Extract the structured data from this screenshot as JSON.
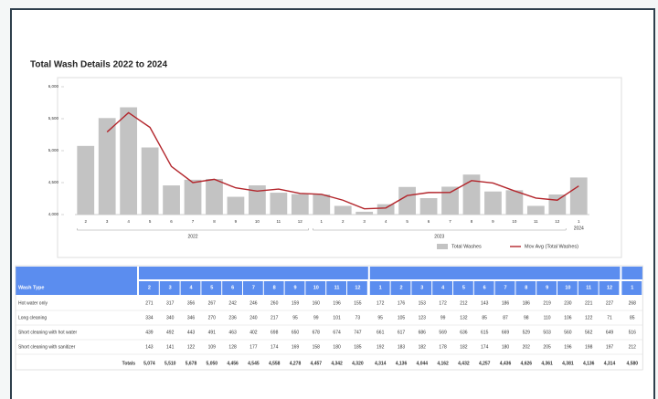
{
  "chart_data": {
    "type": "bar",
    "title": "Total Wash Details 2022 to 2024",
    "category_groups": [
      {
        "label": "2022",
        "categories": [
          "2",
          "3",
          "4",
          "5",
          "6",
          "7",
          "8",
          "9",
          "10",
          "11",
          "12"
        ]
      },
      {
        "label": "2023",
        "categories": [
          "1",
          "2",
          "3",
          "4",
          "5",
          "6",
          "7",
          "8",
          "9",
          "10",
          "11",
          "12"
        ]
      },
      {
        "label": "2024",
        "categories": [
          "1"
        ]
      }
    ],
    "series": [
      {
        "name": "Total Washes",
        "type": "bar",
        "color": "#c3c3c3",
        "values": [
          5074,
          5510,
          5678,
          5050,
          4456,
          4545,
          4558,
          4278,
          4457,
          4342,
          4320,
          4314,
          4136,
          4044,
          4162,
          4432,
          4257,
          4436,
          4626,
          4361,
          4381,
          4136,
          4314,
          4580
        ]
      },
      {
        "name": "Mov Avg (Total Washes)",
        "type": "line",
        "color": "#b3262c",
        "values": [
          null,
          5292,
          5594,
          5364,
          4753,
          4500.5,
          4551.5,
          4418,
          4367.5,
          4399.5,
          4331,
          4317,
          4225,
          4090,
          4103,
          4297,
          4344.5,
          4346.5,
          4531,
          4493.5,
          4371,
          4258.5,
          4225,
          4447
        ]
      }
    ],
    "ylim": [
      4000,
      6000
    ],
    "yticks": [
      {
        "value": 4000,
        "label": "4,000"
      },
      {
        "value": 4500,
        "label": "4,500"
      },
      {
        "value": 5000,
        "label": "5,000"
      },
      {
        "value": 5500,
        "label": "5,500"
      },
      {
        "value": 6000,
        "label": "6,000"
      }
    ],
    "grid": false,
    "legend": "bottom-right"
  },
  "table": {
    "header_label": "Wash Type",
    "columns": [
      "2",
      "3",
      "4",
      "5",
      "6",
      "7",
      "8",
      "9",
      "10",
      "11",
      "12",
      "1",
      "2",
      "3",
      "4",
      "5",
      "6",
      "7",
      "8",
      "9",
      "10",
      "11",
      "12",
      "1"
    ],
    "rows": [
      {
        "label": "Hot water only",
        "values": [
          271,
          317,
          356,
          267,
          242,
          246,
          260,
          159,
          160,
          196,
          155,
          172,
          176,
          153,
          172,
          212,
          143,
          186,
          186,
          219,
          230,
          221,
          227,
          268
        ]
      },
      {
        "label": "Long cleaning",
        "values": [
          334,
          340,
          346,
          270,
          236,
          240,
          217,
          95,
          99,
          101,
          73,
          95,
          105,
          123,
          99,
          132,
          85,
          87,
          98,
          110,
          106,
          122,
          71,
          85
        ]
      },
      {
        "label": "Short cleaning with hot water",
        "values": [
          439,
          492,
          443,
          491,
          463,
          402,
          698,
          650,
          678,
          674,
          747,
          661,
          617,
          686,
          569,
          636,
          615,
          669,
          529,
          503,
          560,
          562,
          649,
          516
        ]
      },
      {
        "label": "Short cleaning with sanitizer",
        "values": [
          143,
          141,
          122,
          109,
          128,
          177,
          174,
          169,
          158,
          180,
          185,
          192,
          183,
          182,
          178,
          182,
          174,
          180,
          202,
          205,
          196,
          198,
          197,
          212
        ]
      }
    ],
    "totals": {
      "label": "Totals",
      "values": [
        "5,074",
        "5,510",
        "5,678",
        "5,050",
        "4,456",
        "4,545",
        "4,558",
        "4,278",
        "4,457",
        "4,342",
        "4,320",
        "4,314",
        "4,136",
        "4,044",
        "4,162",
        "4,432",
        "4,257",
        "4,436",
        "4,626",
        "4,361",
        "4,381",
        "4,136",
        "4,314",
        "4,580"
      ]
    }
  }
}
